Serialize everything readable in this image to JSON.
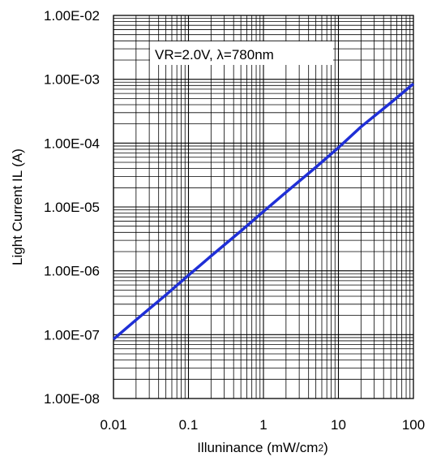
{
  "chart_data": {
    "type": "line",
    "title": "",
    "xlabel": "Illuninance (mW/cm",
    "xlabel_sup": "2",
    "xlabel_close": ")",
    "ylabel": "Light Current IL (A)",
    "xscale": "log",
    "yscale": "log",
    "xlim": [
      0.01,
      100
    ],
    "ylim": [
      1e-08,
      0.01
    ],
    "x_tick_labels": [
      "0.01",
      "0.1",
      "1",
      "10",
      "100"
    ],
    "y_tick_labels": [
      "1.00E-08",
      "1.00E-07",
      "1.00E-06",
      "1.00E-05",
      "1.00E-04",
      "1.00E-03",
      "1.00E-02"
    ],
    "grid": true,
    "annotation": {
      "prefix": "VR=2.0V, ",
      "lambda_symbol": "λ",
      "suffix": "=780nm"
    },
    "series": [
      {
        "color": "#1f2fd6",
        "x": [
          0.01,
          0.02,
          0.05,
          0.1,
          0.2,
          0.5,
          1,
          2,
          5,
          10,
          20,
          50,
          100
        ],
        "y": [
          8.5e-08,
          1.7e-07,
          4.2e-07,
          8.5e-07,
          1.7e-06,
          4.2e-06,
          8.5e-06,
          1.7e-05,
          4.2e-05,
          8.5e-05,
          0.00018,
          0.00043,
          0.00085
        ]
      }
    ]
  }
}
